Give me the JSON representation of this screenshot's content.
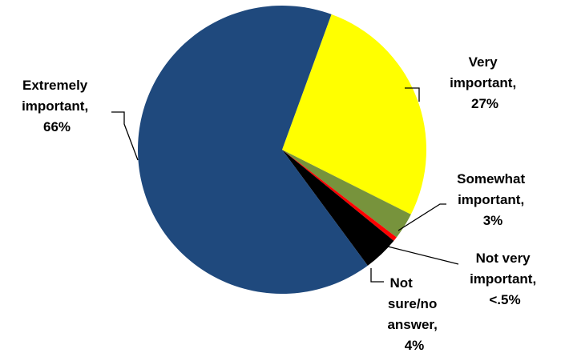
{
  "chart_data": {
    "type": "pie",
    "title": "",
    "slices": [
      {
        "label_lines": [
          "Very",
          "important,",
          "27%"
        ],
        "value": 27,
        "color": "#ffff00"
      },
      {
        "label_lines": [
          "Somewhat",
          "important,",
          "3%"
        ],
        "value": 3,
        "color": "#77933c"
      },
      {
        "label_lines": [
          "Not very",
          "important,",
          "<.5%"
        ],
        "value": 0.5,
        "color": "#ff0000"
      },
      {
        "label_lines": [
          "Not",
          "sure/no",
          "answer,",
          "4%"
        ],
        "value": 4,
        "color": "#000000"
      },
      {
        "label_lines": [
          "Extremely",
          "important,",
          "66%"
        ],
        "value": 66,
        "color": "#1f497d"
      }
    ],
    "legend": "none"
  }
}
